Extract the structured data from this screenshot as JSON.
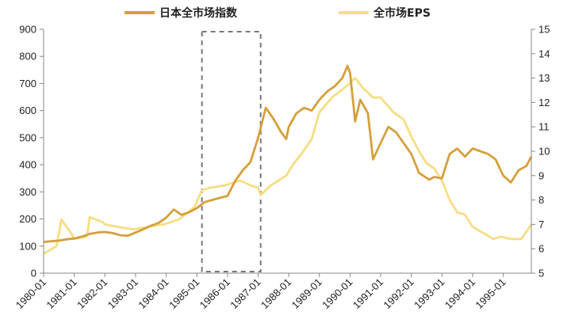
{
  "chart_data": {
    "type": "line",
    "legend_position": "top-center",
    "grid": false,
    "colors": {
      "index": "#D4A03C",
      "eps": "#F5DE82",
      "highlight_box": "#777777"
    },
    "series": [
      {
        "name": "日本全市场指数",
        "axis": "left",
        "points": [
          [
            "1980-01",
            115
          ],
          [
            "1980-04",
            118
          ],
          [
            "1980-07",
            120
          ],
          [
            "1980-10",
            125
          ],
          [
            "1981-01",
            128
          ],
          [
            "1981-04",
            135
          ],
          [
            "1981-07",
            145
          ],
          [
            "1981-10",
            150
          ],
          [
            "1982-01",
            152
          ],
          [
            "1982-04",
            148
          ],
          [
            "1982-07",
            140
          ],
          [
            "1982-10",
            138
          ],
          [
            "1983-01",
            150
          ],
          [
            "1983-04",
            162
          ],
          [
            "1983-07",
            175
          ],
          [
            "1983-10",
            185
          ],
          [
            "1984-01",
            205
          ],
          [
            "1984-04",
            235
          ],
          [
            "1984-07",
            215
          ],
          [
            "1984-10",
            225
          ],
          [
            "1985-01",
            240
          ],
          [
            "1985-04",
            262
          ],
          [
            "1985-07",
            270
          ],
          [
            "1985-10",
            278
          ],
          [
            "1986-01",
            285
          ],
          [
            "1986-04",
            340
          ],
          [
            "1986-07",
            380
          ],
          [
            "1986-10",
            410
          ],
          [
            "1987-01",
            500
          ],
          [
            "1987-04",
            610
          ],
          [
            "1987-07",
            570
          ],
          [
            "1987-10",
            520
          ],
          [
            "1987-12",
            495
          ],
          [
            "1988-01",
            540
          ],
          [
            "1988-04",
            590
          ],
          [
            "1988-07",
            610
          ],
          [
            "1988-10",
            600
          ],
          [
            "1989-01",
            640
          ],
          [
            "1989-04",
            670
          ],
          [
            "1989-07",
            690
          ],
          [
            "1989-10",
            720
          ],
          [
            "1989-12",
            765
          ],
          [
            "1990-01",
            740
          ],
          [
            "1990-03",
            560
          ],
          [
            "1990-05",
            640
          ],
          [
            "1990-08",
            590
          ],
          [
            "1990-10",
            420
          ],
          [
            "1991-01",
            480
          ],
          [
            "1991-04",
            540
          ],
          [
            "1991-07",
            520
          ],
          [
            "1991-10",
            480
          ],
          [
            "1992-01",
            440
          ],
          [
            "1992-04",
            370
          ],
          [
            "1992-08",
            345
          ],
          [
            "1992-10",
            355
          ],
          [
            "1993-01",
            350
          ],
          [
            "1993-04",
            440
          ],
          [
            "1993-07",
            460
          ],
          [
            "1993-10",
            430
          ],
          [
            "1994-01",
            460
          ],
          [
            "1994-04",
            450
          ],
          [
            "1994-07",
            440
          ],
          [
            "1994-10",
            420
          ],
          [
            "1995-01",
            360
          ],
          [
            "1995-04",
            335
          ],
          [
            "1995-07",
            380
          ],
          [
            "1995-10",
            395
          ],
          [
            "1995-12",
            430
          ]
        ]
      },
      {
        "name": "全市场EPS",
        "axis": "right",
        "points": [
          [
            "1980-01",
            5.8
          ],
          [
            "1980-06",
            6.1
          ],
          [
            "1980-08",
            7.2
          ],
          [
            "1980-12",
            6.6
          ],
          [
            "1981-01",
            6.4
          ],
          [
            "1981-06",
            6.5
          ],
          [
            "1981-07",
            7.3
          ],
          [
            "1981-12",
            7.1
          ],
          [
            "1982-01",
            7.0
          ],
          [
            "1982-06",
            6.9
          ],
          [
            "1982-12",
            6.8
          ],
          [
            "1983-06",
            6.9
          ],
          [
            "1983-12",
            7.0
          ],
          [
            "1984-06",
            7.2
          ],
          [
            "1984-12",
            7.7
          ],
          [
            "1985-03",
            8.4
          ],
          [
            "1985-06",
            8.5
          ],
          [
            "1985-12",
            8.6
          ],
          [
            "1986-06",
            8.8
          ],
          [
            "1986-10",
            8.6
          ],
          [
            "1987-01",
            8.5
          ],
          [
            "1987-02",
            8.2
          ],
          [
            "1987-06",
            8.6
          ],
          [
            "1987-12",
            9.0
          ],
          [
            "1988-03",
            9.5
          ],
          [
            "1988-06",
            9.9
          ],
          [
            "1988-10",
            10.5
          ],
          [
            "1989-01",
            11.6
          ],
          [
            "1989-06",
            12.2
          ],
          [
            "1989-12",
            12.7
          ],
          [
            "1990-03",
            13.0
          ],
          [
            "1990-06",
            12.6
          ],
          [
            "1990-10",
            12.2
          ],
          [
            "1991-01",
            12.2
          ],
          [
            "1991-06",
            11.6
          ],
          [
            "1991-10",
            11.3
          ],
          [
            "1992-01",
            10.6
          ],
          [
            "1992-04",
            10.0
          ],
          [
            "1992-07",
            9.5
          ],
          [
            "1992-10",
            9.3
          ],
          [
            "1993-01",
            8.8
          ],
          [
            "1993-04",
            8.0
          ],
          [
            "1993-07",
            7.5
          ],
          [
            "1993-10",
            7.4
          ],
          [
            "1994-01",
            6.9
          ],
          [
            "1994-06",
            6.6
          ],
          [
            "1994-09",
            6.4
          ],
          [
            "1994-12",
            6.5
          ],
          [
            "1995-04",
            6.4
          ],
          [
            "1995-08",
            6.4
          ],
          [
            "1995-12",
            7.0
          ]
        ]
      }
    ],
    "x_ticks": [
      "1980-01",
      "1981-01",
      "1982-01",
      "1983-01",
      "1984-01",
      "1985-01",
      "1986-01",
      "1987-01",
      "1988-01",
      "1989-01",
      "1990-01",
      "1991-01",
      "1992-01",
      "1993-01",
      "1994-01",
      "1995-01"
    ],
    "xlim": [
      "1980-01",
      "1995-12"
    ],
    "y_left": {
      "ticks": [
        0,
        100,
        200,
        300,
        400,
        500,
        600,
        700,
        800,
        900
      ],
      "ylim": [
        0,
        900
      ]
    },
    "y_right": {
      "ticks": [
        5,
        6,
        7,
        8,
        9,
        10,
        11,
        12,
        13,
        14,
        15
      ],
      "ylim": [
        5,
        15
      ]
    },
    "highlight_range": [
      "1985-03",
      "1987-02"
    ]
  }
}
